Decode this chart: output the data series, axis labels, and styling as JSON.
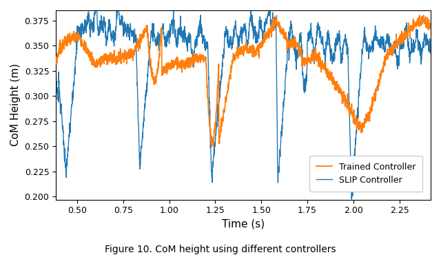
{
  "title": "Figure 10. CoM height using different controllers",
  "xlabel": "Time (s)",
  "ylabel": "CoM Height (m)",
  "xlim": [
    0.385,
    2.42
  ],
  "ylim": [
    0.197,
    0.385
  ],
  "yticks": [
    0.2,
    0.225,
    0.25,
    0.275,
    0.3,
    0.325,
    0.35,
    0.375
  ],
  "xticks": [
    0.5,
    0.75,
    1.0,
    1.25,
    1.5,
    1.75,
    2.0,
    2.25
  ],
  "trained_color": "#ff7f0e",
  "slip_color": "#1f77b4",
  "legend_labels": [
    "Trained Controller",
    "SLIP Controller"
  ],
  "figsize": [
    6.4,
    3.7
  ],
  "dpi": 100,
  "caption": "Figure 10. CoM height using different controllers"
}
